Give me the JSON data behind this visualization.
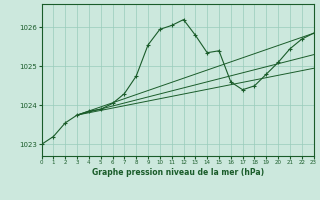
{
  "title": "Graphe pression niveau de la mer (hPa)",
  "background_color": "#cce8dd",
  "grid_color": "#99ccbb",
  "line_color": "#1a5c2a",
  "x_min": 0,
  "x_max": 23,
  "y_min": 1022.7,
  "y_max": 1026.6,
  "yticks": [
    1023,
    1024,
    1025,
    1026
  ],
  "xticks": [
    0,
    1,
    2,
    3,
    4,
    5,
    6,
    7,
    8,
    9,
    10,
    11,
    12,
    13,
    14,
    15,
    16,
    17,
    18,
    19,
    20,
    21,
    22,
    23
  ],
  "lines": [
    {
      "x": [
        0,
        1,
        2,
        3,
        4,
        5,
        6,
        7,
        8,
        9,
        10,
        11,
        12,
        13,
        14,
        15,
        16,
        17,
        18,
        19,
        20,
        21,
        22,
        23
      ],
      "y": [
        1023.0,
        1023.2,
        1023.55,
        1023.75,
        1023.85,
        1023.9,
        1024.05,
        1024.3,
        1024.75,
        1025.55,
        1025.95,
        1026.05,
        1026.2,
        1025.8,
        1025.35,
        1025.4,
        1024.6,
        1024.4,
        1024.5,
        1024.8,
        1025.1,
        1025.45,
        1025.7,
        1025.85
      ]
    },
    {
      "x": [
        3,
        23
      ],
      "y": [
        1023.75,
        1025.85
      ]
    },
    {
      "x": [
        3,
        23
      ],
      "y": [
        1023.75,
        1025.3
      ]
    },
    {
      "x": [
        3,
        23
      ],
      "y": [
        1023.75,
        1024.95
      ]
    }
  ]
}
